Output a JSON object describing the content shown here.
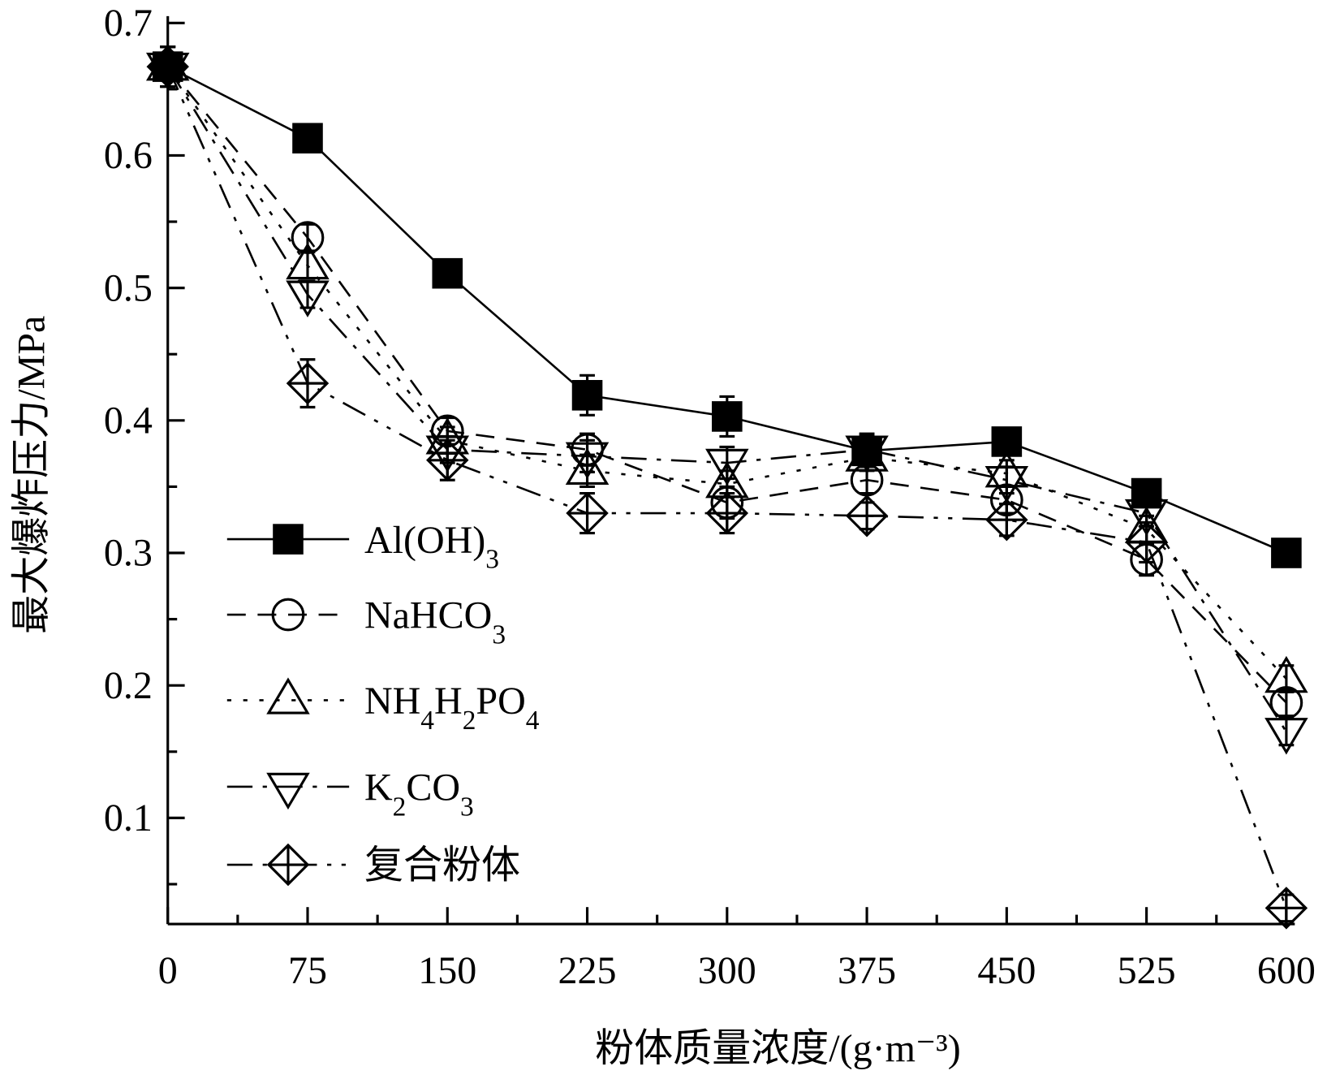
{
  "chart_data": {
    "type": "line",
    "title": "",
    "xlabel": "粉体质量浓度/(g·m⁻³)",
    "ylabel": "最大爆炸压力/MPa",
    "x": [
      0,
      75,
      150,
      225,
      300,
      375,
      450,
      525,
      600
    ],
    "xticks": [
      "0",
      "75",
      "150",
      "225",
      "300",
      "375",
      "450",
      "525",
      "600"
    ],
    "yticks": [
      "0.1",
      "0.2",
      "0.3",
      "0.4",
      "0.5",
      "0.6",
      "0.7"
    ],
    "xlim": [
      0,
      600
    ],
    "ylim": [
      0.02,
      0.7
    ],
    "grid": false,
    "legend_position": "bottom-left",
    "series": [
      {
        "name": "Al(OH)3",
        "label_main": "Al(OH)",
        "label_sub": "3",
        "marker": "filled-square",
        "line": "solid",
        "values": [
          0.667,
          0.613,
          0.511,
          0.419,
          0.403,
          0.377,
          0.384,
          0.345,
          0.3
        ],
        "errors": [
          0.015,
          0.01,
          0.01,
          0.015,
          0.015,
          0.012,
          0.01,
          0.01,
          0.008
        ]
      },
      {
        "name": "NaHCO3",
        "label_main": "NaHCO",
        "label_sub": "3",
        "marker": "circle",
        "line": "dash",
        "values": [
          0.667,
          0.538,
          0.392,
          0.378,
          0.338,
          0.355,
          0.34,
          0.295,
          0.187
        ],
        "errors": [
          0.015,
          0.01,
          0.01,
          0.012,
          0.012,
          0.01,
          0.01,
          0.012,
          0.01
        ]
      },
      {
        "name": "NH4H2PO4",
        "label_main": "NH",
        "label_parts": [
          "NH",
          "4",
          "H",
          "2",
          "PO",
          "4"
        ],
        "label_sub": "",
        "marker": "triangle-up",
        "line": "dot",
        "values": [
          0.667,
          0.517,
          0.385,
          0.362,
          0.352,
          0.372,
          0.36,
          0.318,
          0.205
        ],
        "errors": [
          0.015,
          0.01,
          0.01,
          0.012,
          0.01,
          0.01,
          0.01,
          0.01,
          0.01
        ]
      },
      {
        "name": "K2CO3",
        "label_parts": [
          "K",
          "2",
          "CO",
          "3"
        ],
        "marker": "triangle-down",
        "line": "dash-dot",
        "values": [
          0.667,
          0.495,
          0.378,
          0.373,
          0.368,
          0.378,
          0.355,
          0.33,
          0.165
        ],
        "errors": [
          0.015,
          0.01,
          0.01,
          0.012,
          0.012,
          0.012,
          0.01,
          0.01,
          0.01
        ]
      },
      {
        "name": "复合粉体",
        "label_parts": [
          "复合粉体"
        ],
        "marker": "diamond-cross",
        "line": "dash-dot-dot",
        "values": [
          0.667,
          0.428,
          0.37,
          0.33,
          0.33,
          0.328,
          0.325,
          0.308,
          0.032
        ],
        "errors": [
          0.015,
          0.018,
          0.015,
          0.015,
          0.015,
          0.01,
          0.012,
          0.015,
          0.01
        ]
      }
    ]
  }
}
